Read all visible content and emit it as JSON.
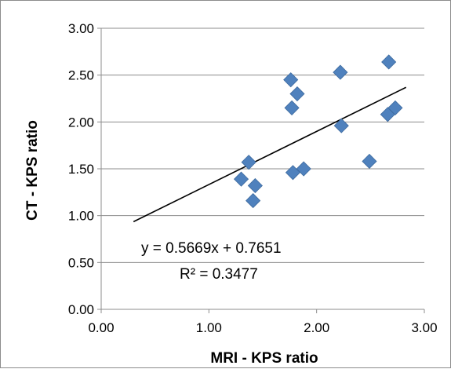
{
  "chart_data": {
    "type": "scatter",
    "title": "",
    "xlabel": "MRI - KPS ratio",
    "ylabel": "CT - KPS ratio",
    "xlim": [
      0,
      3
    ],
    "ylim": [
      0,
      3
    ],
    "x_ticks": [
      "0.00",
      "1.00",
      "2.00",
      "3.00"
    ],
    "y_ticks": [
      "0.00",
      "0.50",
      "1.00",
      "1.50",
      "2.00",
      "2.50",
      "3.00"
    ],
    "grid": "horizontal",
    "legend": "none",
    "marker_color": "#4f81bd",
    "series": [
      {
        "x": [
          1.3,
          1.37,
          1.43,
          1.41,
          1.76,
          1.77,
          1.82,
          1.78,
          1.88,
          2.22,
          2.23,
          2.49,
          2.67,
          2.66,
          2.73
        ],
        "y": [
          1.39,
          1.57,
          1.32,
          1.16,
          2.45,
          2.15,
          2.3,
          1.46,
          1.5,
          2.53,
          1.96,
          1.58,
          2.64,
          2.08,
          2.15
        ]
      }
    ],
    "trendline": {
      "slope": 0.5669,
      "intercept": 0.7651,
      "x_range": [
        0.3,
        2.83
      ],
      "color": "#000000"
    },
    "annotations": {
      "equation": "y = 0.5669x + 0.7651",
      "r_squared": "R² = 0.3477"
    }
  }
}
